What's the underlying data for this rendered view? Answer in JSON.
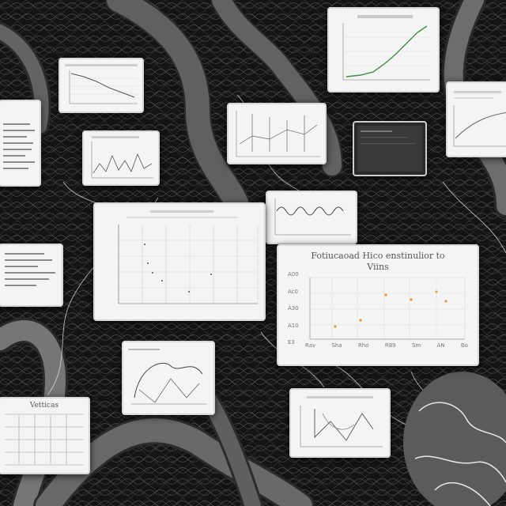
{
  "scene": {
    "colors": {
      "background": "#141414",
      "card": "#f4f4f4",
      "ink": "#555555",
      "green_line": "#3f8f3f",
      "orange_point": "#e89a3c"
    },
    "large_chart": {
      "title_line1": "Fotiucaoad Hico enstinulior to",
      "title_line2": "Viins",
      "x_ticks": [
        "Rav",
        "Sha",
        "Rho",
        "R89",
        "Sm",
        "AN",
        "Bo"
      ],
      "y_ticks": [
        "A00",
        "Ac0",
        "A30",
        "A10",
        "E3"
      ]
    },
    "table_card": {
      "heading": "Vetticas"
    }
  }
}
